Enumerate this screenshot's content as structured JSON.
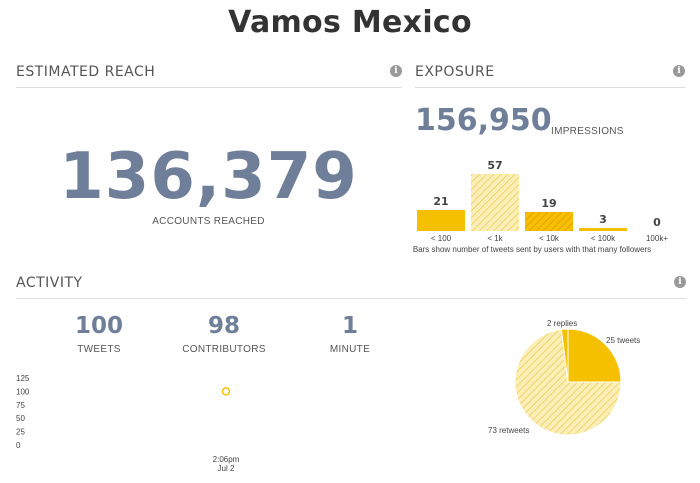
{
  "title": "Vamos Mexico",
  "estimated_reach": {
    "heading": "ESTIMATED REACH",
    "value": "136,379",
    "label": "ACCOUNTS REACHED"
  },
  "exposure": {
    "heading": "EXPOSURE",
    "impressions_value": "156,950",
    "impressions_label": "IMPRESSIONS",
    "note": "Bars show number of tweets sent by users with that many followers"
  },
  "activity": {
    "heading": "ACTIVITY",
    "stats": [
      {
        "value": "100",
        "label": "TWEETS"
      },
      {
        "value": "98",
        "label": "CONTRIBUTORS"
      },
      {
        "value": "1",
        "label": "MINUTE"
      }
    ],
    "timeline_time": "2:06pm",
    "timeline_date": "Jul 2"
  },
  "info_glyph": "i",
  "colors": {
    "accent_blue": "#6f7f99",
    "gold": "#f5c000",
    "gold_light": "#f8e39a",
    "gold_dark": "#f0a800"
  },
  "chart_data": [
    {
      "type": "bar",
      "title": "",
      "categories": [
        "< 100",
        "< 1k",
        "< 10k",
        "< 100k",
        "100k+"
      ],
      "values": [
        21,
        57,
        19,
        3,
        0
      ],
      "value_labels": [
        "21",
        "57",
        "19",
        "3",
        "0"
      ],
      "ylim": [
        0,
        57
      ]
    },
    {
      "type": "scatter",
      "x": [
        "2:06pm Jul 2"
      ],
      "values": [
        100
      ],
      "y_ticks": [
        "125",
        "100",
        "75",
        "50",
        "25",
        "0"
      ],
      "ylim": [
        0,
        125
      ]
    },
    {
      "type": "pie",
      "labels": [
        "25 tweets",
        "73 retweets",
        "2 replies"
      ],
      "values": [
        25,
        73,
        2
      ]
    }
  ]
}
